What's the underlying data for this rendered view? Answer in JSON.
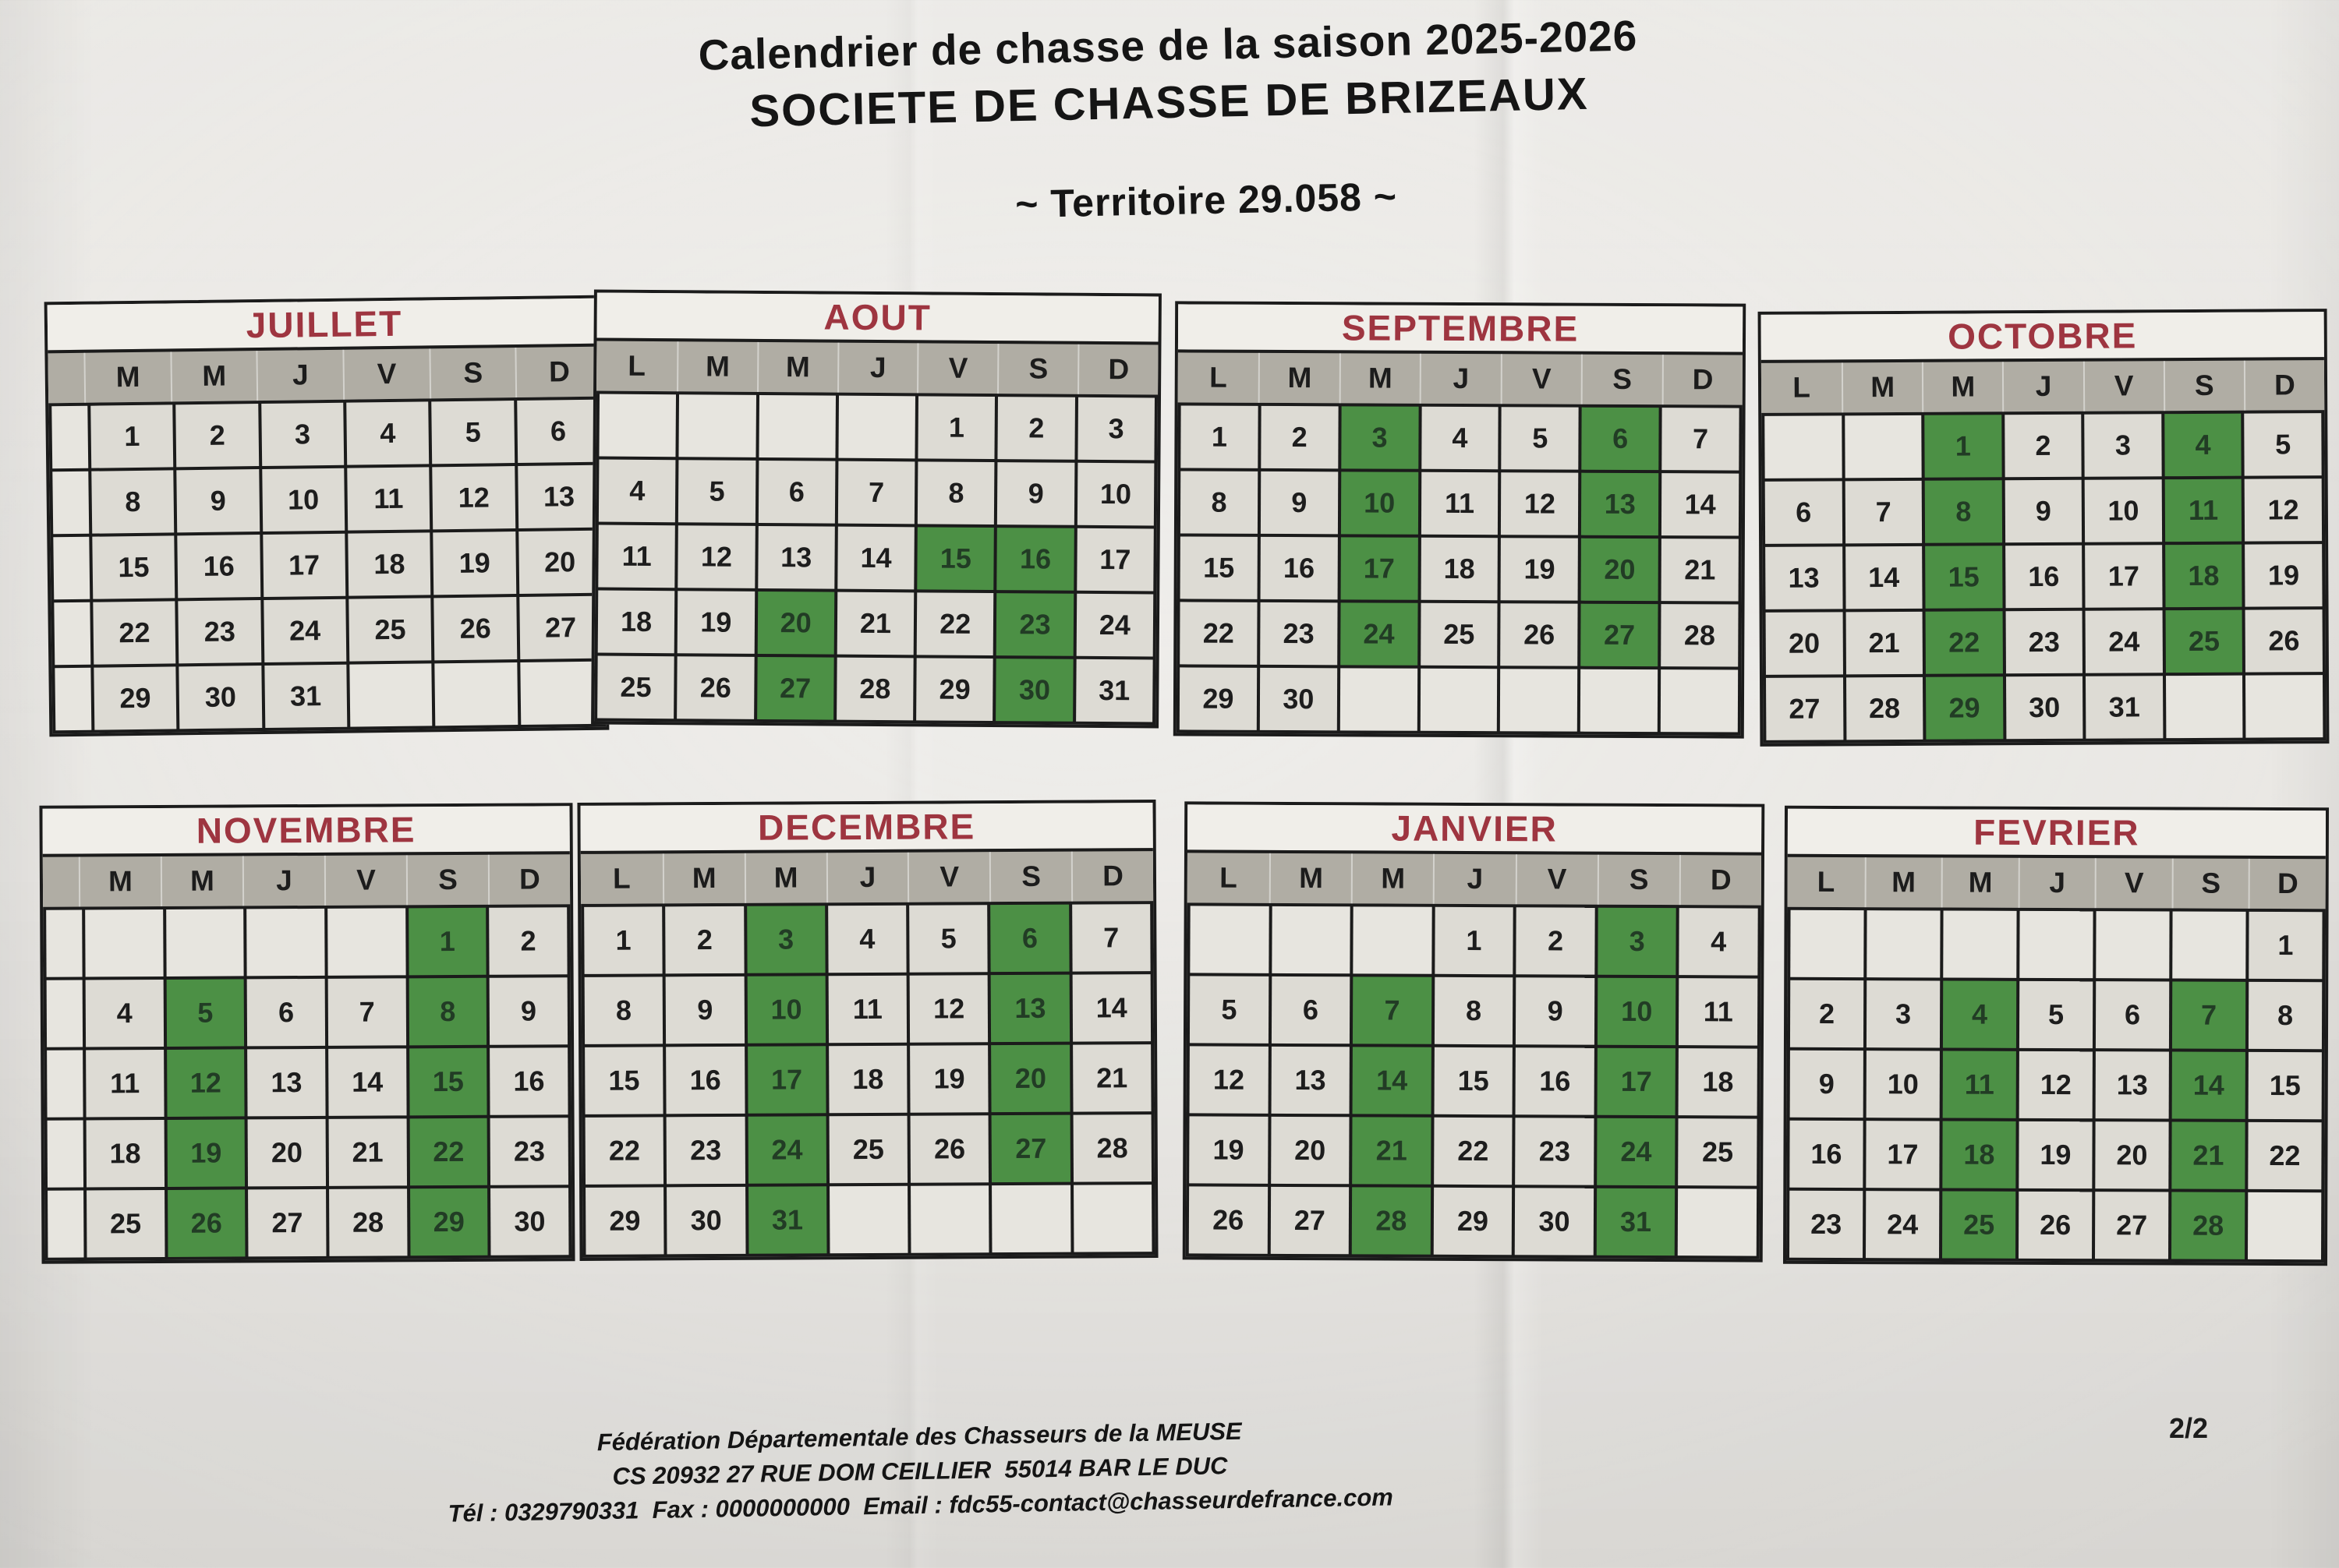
{
  "document": {
    "title_line1": "Calendrier de chasse de la saison 2025-2026",
    "title_line2": "SOCIETE DE CHASSE DE BRIZEAUX",
    "territory_line": "~ Territoire 29.058 ~",
    "page_number": "2/2",
    "footer": {
      "line1": "Fédération Départementale des Chasseurs de la MEUSE",
      "line2": "CS 20932 27 RUE DOM CEILLIER  55014 BAR LE DUC",
      "line3": "Tél : 0329790331  Fax : 0000000000  Email : fdc55-contact@chasseurdefrance.com"
    }
  },
  "colors": {
    "month_title": "#9e3540",
    "header_bg": "#b0ada4",
    "cell_bg": "#dddbd4",
    "empty_bg": "#e7e5df",
    "green": "#4c9045",
    "green_text": "#223c25",
    "grid": "#1b1b1b",
    "paper": "#e7e5e1"
  },
  "months": [
    {
      "name": "JUILLET",
      "gutter": true,
      "headers": [
        "M",
        "M",
        "J",
        "V",
        "S",
        "D"
      ],
      "weeks": [
        [
          "1",
          "2",
          "3",
          "4",
          "5",
          "6"
        ],
        [
          "8",
          "9",
          "10",
          "11",
          "12",
          "13"
        ],
        [
          "15",
          "16",
          "17",
          "18",
          "19",
          "20"
        ],
        [
          "22",
          "23",
          "24",
          "25",
          "26",
          "27"
        ],
        [
          "29",
          "30",
          "31",
          "",
          "",
          ""
        ]
      ],
      "green_days": []
    },
    {
      "name": "AOUT",
      "gutter": false,
      "headers": [
        "L",
        "M",
        "M",
        "J",
        "V",
        "S",
        "D"
      ],
      "weeks": [
        [
          "",
          "",
          "",
          "",
          "1",
          "2",
          "3"
        ],
        [
          "4",
          "5",
          "6",
          "7",
          "8",
          "9",
          "10"
        ],
        [
          "11",
          "12",
          "13",
          "14",
          "15",
          "16",
          "17"
        ],
        [
          "18",
          "19",
          "20",
          "21",
          "22",
          "23",
          "24"
        ],
        [
          "25",
          "26",
          "27",
          "28",
          "29",
          "30",
          "31"
        ]
      ],
      "green_days": [
        "15",
        "16",
        "20",
        "23",
        "27",
        "30"
      ]
    },
    {
      "name": "SEPTEMBRE",
      "gutter": false,
      "headers": [
        "L",
        "M",
        "M",
        "J",
        "V",
        "S",
        "D"
      ],
      "weeks": [
        [
          "1",
          "2",
          "3",
          "4",
          "5",
          "6",
          "7"
        ],
        [
          "8",
          "9",
          "10",
          "11",
          "12",
          "13",
          "14"
        ],
        [
          "15",
          "16",
          "17",
          "18",
          "19",
          "20",
          "21"
        ],
        [
          "22",
          "23",
          "24",
          "25",
          "26",
          "27",
          "28"
        ],
        [
          "29",
          "30",
          "",
          "",
          "",
          "",
          ""
        ]
      ],
      "green_days": [
        "3",
        "6",
        "10",
        "13",
        "17",
        "20",
        "24",
        "27"
      ]
    },
    {
      "name": "OCTOBRE",
      "gutter": false,
      "headers": [
        "L",
        "M",
        "M",
        "J",
        "V",
        "S",
        "D"
      ],
      "weeks": [
        [
          "",
          "",
          "1",
          "2",
          "3",
          "4",
          "5"
        ],
        [
          "6",
          "7",
          "8",
          "9",
          "10",
          "11",
          "12"
        ],
        [
          "13",
          "14",
          "15",
          "16",
          "17",
          "18",
          "19"
        ],
        [
          "20",
          "21",
          "22",
          "23",
          "24",
          "25",
          "26"
        ],
        [
          "27",
          "28",
          "29",
          "30",
          "31",
          "",
          ""
        ]
      ],
      "green_days": [
        "1",
        "4",
        "8",
        "11",
        "15",
        "18",
        "22",
        "25",
        "29"
      ]
    },
    {
      "name": "NOVEMBRE",
      "gutter": true,
      "headers": [
        "M",
        "M",
        "J",
        "V",
        "S",
        "D"
      ],
      "weeks": [
        [
          "",
          "",
          "",
          "",
          "1",
          "2"
        ],
        [
          "4",
          "5",
          "6",
          "7",
          "8",
          "9"
        ],
        [
          "11",
          "12",
          "13",
          "14",
          "15",
          "16"
        ],
        [
          "18",
          "19",
          "20",
          "21",
          "22",
          "23"
        ],
        [
          "25",
          "26",
          "27",
          "28",
          "29",
          "30"
        ]
      ],
      "green_days": [
        "1",
        "5",
        "8",
        "12",
        "15",
        "19",
        "22",
        "26",
        "29"
      ]
    },
    {
      "name": "DECEMBRE",
      "gutter": false,
      "headers": [
        "L",
        "M",
        "M",
        "J",
        "V",
        "S",
        "D"
      ],
      "weeks": [
        [
          "1",
          "2",
          "3",
          "4",
          "5",
          "6",
          "7"
        ],
        [
          "8",
          "9",
          "10",
          "11",
          "12",
          "13",
          "14"
        ],
        [
          "15",
          "16",
          "17",
          "18",
          "19",
          "20",
          "21"
        ],
        [
          "22",
          "23",
          "24",
          "25",
          "26",
          "27",
          "28"
        ],
        [
          "29",
          "30",
          "31",
          "",
          "",
          "",
          ""
        ]
      ],
      "green_days": [
        "3",
        "6",
        "10",
        "13",
        "17",
        "20",
        "24",
        "27",
        "31"
      ]
    },
    {
      "name": "JANVIER",
      "gutter": false,
      "headers": [
        "L",
        "M",
        "M",
        "J",
        "V",
        "S",
        "D"
      ],
      "weeks": [
        [
          "",
          "",
          "",
          "1",
          "2",
          "3",
          "4"
        ],
        [
          "5",
          "6",
          "7",
          "8",
          "9",
          "10",
          "11"
        ],
        [
          "12",
          "13",
          "14",
          "15",
          "16",
          "17",
          "18"
        ],
        [
          "19",
          "20",
          "21",
          "22",
          "23",
          "24",
          "25"
        ],
        [
          "26",
          "27",
          "28",
          "29",
          "30",
          "31",
          ""
        ]
      ],
      "green_days": [
        "3",
        "7",
        "10",
        "14",
        "17",
        "21",
        "24",
        "28",
        "31"
      ]
    },
    {
      "name": "FEVRIER",
      "gutter": false,
      "headers": [
        "L",
        "M",
        "M",
        "J",
        "V",
        "S",
        "D"
      ],
      "weeks": [
        [
          "",
          "",
          "",
          "",
          "",
          "",
          "1"
        ],
        [
          "2",
          "3",
          "4",
          "5",
          "6",
          "7",
          "8"
        ],
        [
          "9",
          "10",
          "11",
          "12",
          "13",
          "14",
          "15"
        ],
        [
          "16",
          "17",
          "18",
          "19",
          "20",
          "21",
          "22"
        ],
        [
          "23",
          "24",
          "25",
          "26",
          "27",
          "28",
          ""
        ]
      ],
      "green_days": [
        "4",
        "7",
        "11",
        "14",
        "18",
        "21",
        "25",
        "28"
      ]
    }
  ]
}
